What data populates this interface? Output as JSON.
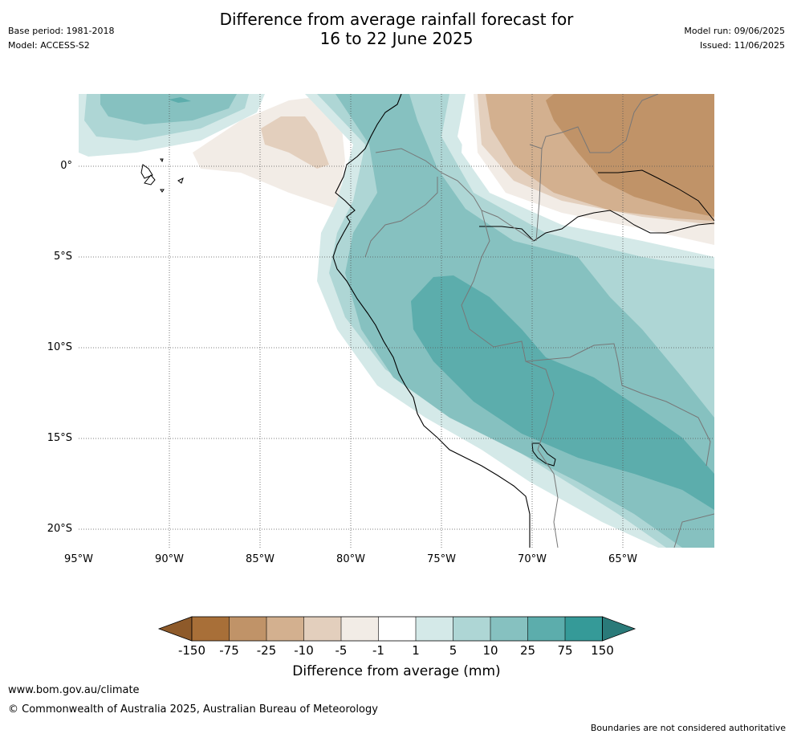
{
  "header": {
    "title_line1": "Difference from average rainfall forecast for",
    "title_line2": "16 to 22 June 2025",
    "base_period": "Base period: 1981-2018",
    "model": "Model: ACCESS-S2",
    "model_run": "Model run: 09/06/2025",
    "issued": "Issued: 11/06/2025"
  },
  "map": {
    "lat_ticks": [
      "0°",
      "5°S",
      "10°S",
      "15°S",
      "20°S"
    ],
    "lon_ticks": [
      "95°W",
      "90°W",
      "85°W",
      "80°W",
      "75°W",
      "70°W",
      "65°W"
    ],
    "colors": {
      "very_dry": "#a86f38",
      "dry_75": "#c09368",
      "dry_25": "#d3b08f",
      "dry_10": "#e3cfbd",
      "dry_5": "#f2ece6",
      "neutral": "#ffffff",
      "wet_1": "#d4e9e8",
      "wet_5": "#aed6d5",
      "wet_10": "#86c1c0",
      "wet_25": "#5cadac",
      "wet_75": "#359a98",
      "very_wet": "#2a7a79",
      "coastline": "#000000",
      "border": "#777777",
      "grid": "#555555"
    }
  },
  "colorbar": {
    "labels": [
      "-150",
      "-75",
      "-25",
      "-10",
      "-5",
      "-1",
      "1",
      "5",
      "10",
      "25",
      "75",
      "150"
    ],
    "colors": [
      "#a86f38",
      "#c09368",
      "#d3b08f",
      "#e3cfbd",
      "#f2ece6",
      "#ffffff",
      "#d4e9e8",
      "#aed6d5",
      "#86c1c0",
      "#5cadac",
      "#359a98"
    ],
    "left_extend_color": "#8e5a2a",
    "right_extend_color": "#2a7a79",
    "title": "Difference from average (mm)"
  },
  "footer": {
    "website": "www.bom.gov.au/climate",
    "copyright": "© Commonwealth of Australia 2025, Australian Bureau of Meteorology",
    "disclaimer": "Boundaries are not considered authoritative"
  }
}
